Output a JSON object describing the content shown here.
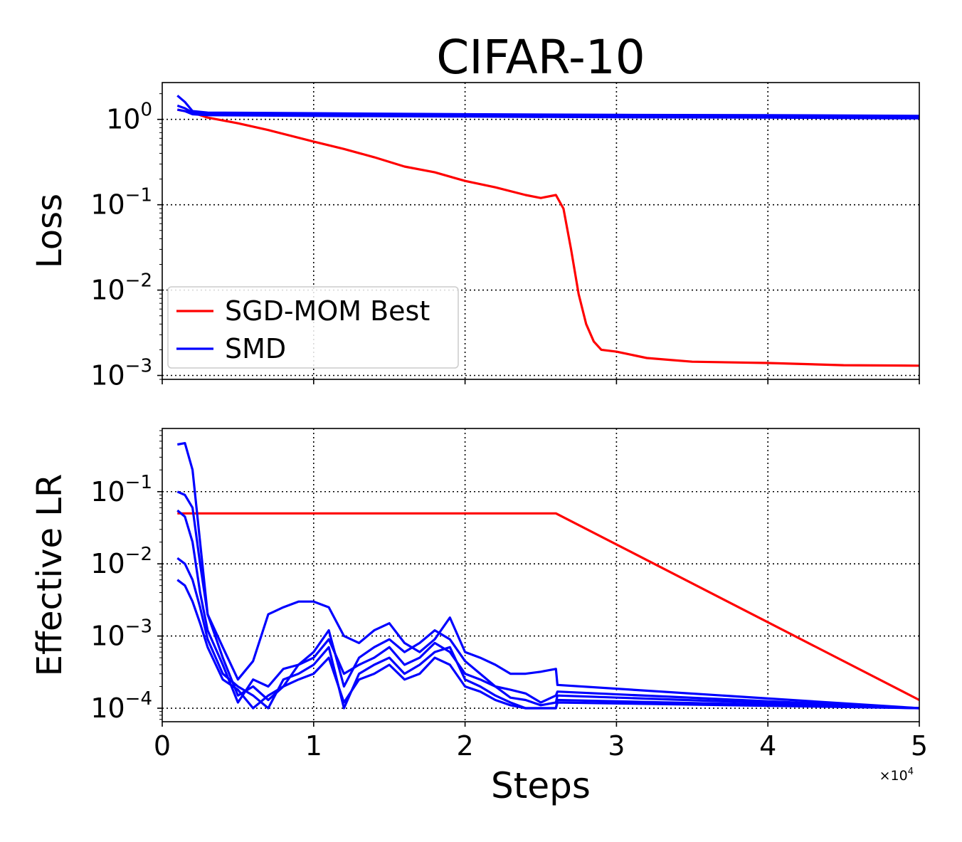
{
  "figure": {
    "title": "CIFAR-10",
    "x_multiplier": {
      "base": "×10",
      "exponent": "4"
    }
  },
  "chart_data": [
    {
      "type": "line",
      "panel": "top",
      "title": "CIFAR-10",
      "xlabel": "",
      "ylabel": "Loss",
      "xlim": [
        0,
        50000
      ],
      "ylim": [
        0.0009,
        2.7
      ],
      "yscale": "log",
      "grid": true,
      "x_ticks": [
        0,
        10000,
        20000,
        30000,
        40000,
        50000
      ],
      "y_ticks": [
        {
          "value": 1,
          "base": "10",
          "exp": "0"
        },
        {
          "value": 0.1,
          "base": "10",
          "exp": "−1"
        },
        {
          "value": 0.01,
          "base": "10",
          "exp": "−2"
        },
        {
          "value": 0.001,
          "base": "10",
          "exp": "−3"
        }
      ],
      "legend": {
        "position": "lower-left",
        "entries": [
          {
            "label": "SGD-MOM Best",
            "color": "#ff0000"
          },
          {
            "label": "SMD",
            "color": "#0000ff"
          }
        ]
      },
      "series": [
        {
          "name": "SGD-MOM Best",
          "color": "#ff0000",
          "x": [
            1000,
            2000,
            3000,
            5000,
            7000,
            10000,
            12000,
            14000,
            16000,
            18000,
            20000,
            22000,
            24000,
            25000,
            26000,
            26500,
            27000,
            27500,
            28000,
            28500,
            29000,
            30000,
            32000,
            35000,
            40000,
            45000,
            50000
          ],
          "y": [
            1.3,
            1.2,
            1.05,
            0.9,
            0.75,
            0.55,
            0.45,
            0.36,
            0.28,
            0.24,
            0.19,
            0.16,
            0.13,
            0.12,
            0.13,
            0.09,
            0.03,
            0.009,
            0.004,
            0.0025,
            0.002,
            0.0019,
            0.0016,
            0.00145,
            0.0014,
            0.00132,
            0.0013
          ]
        },
        {
          "name": "SMD",
          "color": "#0000ff",
          "x": [
            1000,
            1500,
            2000,
            3000,
            10000,
            20000,
            30000,
            40000,
            50000
          ],
          "y": [
            1.9,
            1.6,
            1.25,
            1.2,
            1.18,
            1.15,
            1.13,
            1.12,
            1.1
          ]
        },
        {
          "name": "SMD",
          "color": "#0000ff",
          "x": [
            1000,
            1500,
            2000,
            3000,
            10000,
            20000,
            30000,
            40000,
            50000
          ],
          "y": [
            1.45,
            1.35,
            1.2,
            1.17,
            1.15,
            1.12,
            1.11,
            1.09,
            1.07
          ]
        },
        {
          "name": "SMD",
          "color": "#0000ff",
          "x": [
            1000,
            1500,
            2000,
            3000,
            10000,
            20000,
            30000,
            40000,
            50000
          ],
          "y": [
            1.3,
            1.25,
            1.15,
            1.12,
            1.1,
            1.08,
            1.06,
            1.05,
            1.03
          ]
        }
      ]
    },
    {
      "type": "line",
      "panel": "bottom",
      "xlabel": "Steps",
      "ylabel": "Effective LR",
      "xlim": [
        0,
        50000
      ],
      "ylim": [
        6.5e-05,
        0.75
      ],
      "yscale": "log",
      "grid": true,
      "x_ticks": [
        0,
        10000,
        20000,
        30000,
        40000,
        50000
      ],
      "x_tick_labels": [
        "0",
        "1",
        "2",
        "3",
        "4",
        "5"
      ],
      "y_ticks": [
        {
          "value": 0.1,
          "base": "10",
          "exp": "−1"
        },
        {
          "value": 0.01,
          "base": "10",
          "exp": "−2"
        },
        {
          "value": 0.001,
          "base": "10",
          "exp": "−3"
        },
        {
          "value": 0.0001,
          "base": "10",
          "exp": "−4"
        }
      ],
      "series": [
        {
          "name": "SGD-MOM Best",
          "color": "#ff0000",
          "x": [
            1000,
            26000,
            50000
          ],
          "y": [
            0.05,
            0.05,
            0.00013
          ]
        },
        {
          "name": "SMD",
          "color": "#0000ff",
          "x": [
            1000,
            1500,
            2000,
            2500,
            3000,
            4000,
            5000,
            6000,
            7000,
            8000,
            9000,
            10000,
            11000,
            12000,
            13000,
            14000,
            15000,
            16000,
            17000,
            18000,
            19000,
            20000,
            21000,
            22000,
            23000,
            24000,
            25000,
            26000,
            26100,
            50000
          ],
          "y": [
            0.45,
            0.47,
            0.2,
            0.02,
            0.002,
            0.0007,
            0.00025,
            0.00045,
            0.002,
            0.0025,
            0.003,
            0.003,
            0.0025,
            0.001,
            0.0008,
            0.0012,
            0.0015,
            0.0008,
            0.0006,
            0.0009,
            0.0018,
            0.0006,
            0.0005,
            0.0004,
            0.0003,
            0.0003,
            0.00032,
            0.00035,
            0.00021,
            0.0001
          ]
        },
        {
          "name": "SMD",
          "color": "#0000ff",
          "x": [
            1000,
            1500,
            2000,
            2500,
            3000,
            4000,
            5000,
            6000,
            7000,
            8000,
            9000,
            10000,
            11000,
            12000,
            13000,
            14000,
            15000,
            16000,
            17000,
            18000,
            19000,
            20000,
            21000,
            22000,
            23000,
            24000,
            25000,
            26000,
            26100,
            50000
          ],
          "y": [
            0.1,
            0.09,
            0.06,
            0.01,
            0.002,
            0.0005,
            0.00015,
            0.0002,
            0.00013,
            0.0002,
            0.0004,
            0.0006,
            0.0012,
            0.0002,
            0.0005,
            0.0007,
            0.0009,
            0.0006,
            0.0008,
            0.0012,
            0.0009,
            0.00045,
            0.0003,
            0.0002,
            0.00018,
            0.00016,
            0.00012,
            0.00015,
            0.00017,
            0.0001
          ]
        },
        {
          "name": "SMD",
          "color": "#0000ff",
          "x": [
            1000,
            1500,
            2000,
            2500,
            3000,
            4000,
            5000,
            6000,
            7000,
            8000,
            9000,
            10000,
            11000,
            12000,
            13000,
            14000,
            15000,
            16000,
            17000,
            18000,
            19000,
            20000,
            21000,
            22000,
            23000,
            24000,
            25000,
            26000,
            26100,
            50000
          ],
          "y": [
            0.055,
            0.045,
            0.02,
            0.004,
            0.0012,
            0.0004,
            0.00012,
            0.00025,
            0.0002,
            0.00035,
            0.0004,
            0.0005,
            0.0009,
            0.0003,
            0.0004,
            0.0005,
            0.0007,
            0.0004,
            0.0005,
            0.0008,
            0.0006,
            0.0003,
            0.00025,
            0.0002,
            0.00014,
            0.00013,
            0.00011,
            0.00012,
            0.00015,
            0.0001
          ]
        },
        {
          "name": "SMD",
          "color": "#0000ff",
          "x": [
            1000,
            1500,
            2000,
            2500,
            3000,
            4000,
            5000,
            6000,
            7000,
            8000,
            9000,
            10000,
            11000,
            12000,
            13000,
            14000,
            15000,
            16000,
            17000,
            18000,
            19000,
            20000,
            21000,
            22000,
            23000,
            24000,
            25000,
            26000,
            26100,
            50000
          ],
          "y": [
            0.012,
            0.01,
            0.006,
            0.0025,
            0.0009,
            0.0003,
            0.0002,
            0.00015,
            0.0001,
            0.00025,
            0.0003,
            0.0004,
            0.0007,
            0.0001,
            0.0003,
            0.0004,
            0.0005,
            0.0003,
            0.0004,
            0.0006,
            0.0007,
            0.00025,
            0.0002,
            0.00015,
            0.00012,
            0.0001,
            0.0001,
            0.0001,
            0.00013,
            0.0001
          ]
        },
        {
          "name": "SMD",
          "color": "#0000ff",
          "x": [
            1000,
            1500,
            2000,
            2500,
            3000,
            4000,
            5000,
            6000,
            7000,
            8000,
            9000,
            10000,
            11000,
            12000,
            13000,
            14000,
            15000,
            16000,
            17000,
            18000,
            19000,
            20000,
            21000,
            22000,
            23000,
            24000,
            25000,
            26000,
            26100,
            50000
          ],
          "y": [
            0.006,
            0.005,
            0.003,
            0.0015,
            0.0007,
            0.00025,
            0.00018,
            0.0001,
            0.00015,
            0.0002,
            0.00025,
            0.0003,
            0.0005,
            0.00012,
            0.00025,
            0.0003,
            0.0004,
            0.00025,
            0.0003,
            0.0005,
            0.0004,
            0.0002,
            0.00017,
            0.00013,
            0.00011,
            0.0001,
            0.0001,
            0.0001,
            0.00012,
            0.0001
          ]
        }
      ]
    }
  ]
}
